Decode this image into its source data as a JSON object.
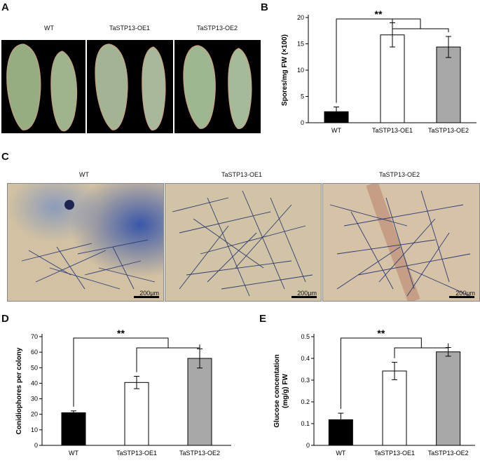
{
  "panels": {
    "A": {
      "letter": "A",
      "labels": [
        "WT",
        "TaSTP13-OE1",
        "TaSTP13-OE2"
      ]
    },
    "C": {
      "letter": "C",
      "labels": [
        "WT",
        "TaSTP13-OE1",
        "TaSTP13-OE2"
      ],
      "scale_bar": "200μm"
    }
  },
  "chart_data": [
    {
      "panel": "B",
      "type": "bar",
      "categories": [
        "WT",
        "TaSTP13-OE1",
        "TaSTP13-OE2"
      ],
      "values": [
        2.1,
        16.7,
        14.4
      ],
      "errors": [
        0.9,
        2.3,
        2.0
      ],
      "bar_colors": [
        "#000000",
        "#ffffff",
        "#a8a8a8"
      ],
      "ylabel": "Spores/mg FW (×100)",
      "ylim": [
        0,
        20
      ],
      "yticks": [
        0,
        5,
        10,
        15,
        20
      ],
      "significance": "**"
    },
    {
      "panel": "D",
      "type": "bar",
      "categories": [
        "WT",
        "TaSTP13-OE1",
        "TaSTP13-OE2"
      ],
      "values": [
        21,
        40.5,
        56
      ],
      "errors": [
        1.2,
        4,
        6.2
      ],
      "bar_colors": [
        "#000000",
        "#ffffff",
        "#a8a8a8"
      ],
      "ylabel": "Conidiophores per colony",
      "ylim": [
        0,
        70
      ],
      "yticks": [
        0,
        10,
        20,
        30,
        40,
        50,
        60,
        70
      ],
      "significance": "**"
    },
    {
      "panel": "E",
      "type": "bar",
      "categories": [
        "WT",
        "TaSTP13-OE1",
        "TaSTP13-OE2"
      ],
      "values": [
        0.118,
        0.342,
        0.43
      ],
      "errors": [
        0.03,
        0.04,
        0.02
      ],
      "bar_colors": [
        "#000000",
        "#ffffff",
        "#a8a8a8"
      ],
      "ylabel": "Glucose concentation\n(mg/g) FW",
      "ylim": [
        0,
        0.5
      ],
      "yticks": [
        0,
        0.1,
        0.2,
        0.3,
        0.4,
        0.5
      ],
      "significance": "**"
    }
  ]
}
